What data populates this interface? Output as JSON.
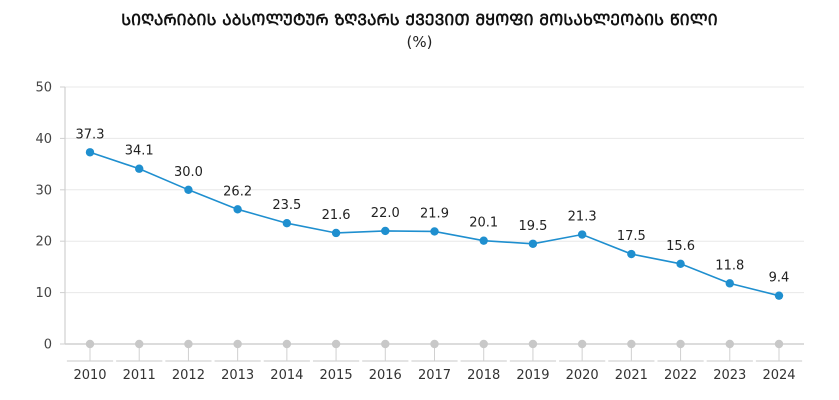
{
  "chart_data": {
    "type": "line",
    "title": "ᲡᲘᲦᲐᲠᲘᲑᲘᲡ ᲐᲑᲡᲝᲚᲣᲢᲣᲠ ᲖᲦᲕᲐᲠᲡ ᲥᲕᲔᲕᲘᲗ ᲛᲧᲝᲤᲘ ᲛᲝᲡᲐᲮᲚᲔᲝᲑᲘᲡ ᲬᲘᲚᲘ",
    "subtitle": "(%)",
    "xlabel": "",
    "ylabel": "",
    "categories": [
      "2010",
      "2011",
      "2012",
      "2013",
      "2014",
      "2015",
      "2016",
      "2017",
      "2018",
      "2019",
      "2020",
      "2021",
      "2022",
      "2023",
      "2024"
    ],
    "series": [
      {
        "name": "share",
        "color": "#1f8fcf",
        "values": [
          37.3,
          34.1,
          30.0,
          26.2,
          23.5,
          21.6,
          22.0,
          21.9,
          20.1,
          19.5,
          21.3,
          17.5,
          15.6,
          11.8,
          9.4
        ],
        "labels": [
          "37.3",
          "34.1",
          "30.0",
          "26.2",
          "23.5",
          "21.6",
          "22.0",
          "21.9",
          "20.1",
          "19.5",
          "21.3",
          "17.5",
          "15.6",
          "11.8",
          "9.4"
        ]
      },
      {
        "name": "baseline",
        "color": "#c8c8c8",
        "values": [
          0,
          0,
          0,
          0,
          0,
          0,
          0,
          0,
          0,
          0,
          0,
          0,
          0,
          0,
          0
        ]
      }
    ],
    "yticks": [
      "0",
      "10",
      "20",
      "30",
      "40",
      "50"
    ],
    "ylim": [
      0,
      50
    ],
    "grid": true,
    "legend": "none"
  }
}
